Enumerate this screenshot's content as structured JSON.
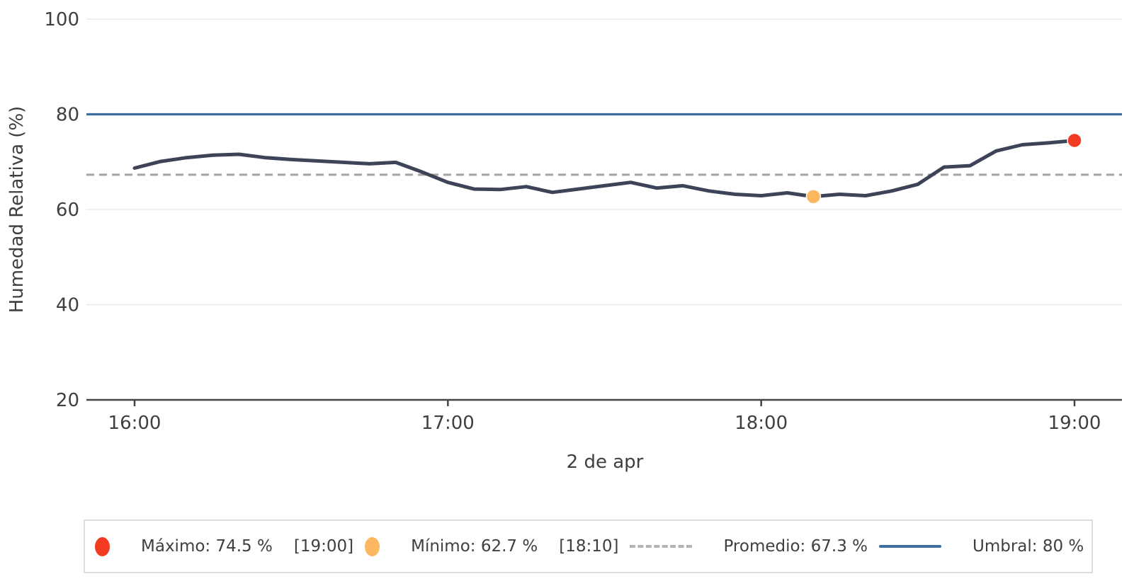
{
  "chart_data": {
    "type": "line",
    "title": "",
    "xlabel": "2 de apr",
    "ylabel": "Humedad Relativa (%)",
    "x": [
      "16:00",
      "16:05",
      "16:10",
      "16:15",
      "16:20",
      "16:25",
      "16:30",
      "16:35",
      "16:40",
      "16:45",
      "16:50",
      "16:55",
      "17:00",
      "17:05",
      "17:10",
      "17:15",
      "17:20",
      "17:25",
      "17:30",
      "17:35",
      "17:40",
      "17:45",
      "17:50",
      "17:55",
      "18:00",
      "18:05",
      "18:10",
      "18:15",
      "18:20",
      "18:25",
      "18:30",
      "18:35",
      "18:40",
      "18:45",
      "18:50",
      "18:55",
      "19:00"
    ],
    "values": [
      68.7,
      70.1,
      70.9,
      71.4,
      71.6,
      70.9,
      70.5,
      70.2,
      69.9,
      69.6,
      69.9,
      67.9,
      65.7,
      64.3,
      64.2,
      64.8,
      63.6,
      64.3,
      65.0,
      65.7,
      64.5,
      65.0,
      63.9,
      63.2,
      62.9,
      63.5,
      62.7,
      63.2,
      62.9,
      63.9,
      65.3,
      68.9,
      69.2,
      72.3,
      73.6,
      74.0,
      74.5
    ],
    "series_name": "Humedad Relativa",
    "series_color": "#3d4458",
    "ylim": [
      20,
      100
    ],
    "yticks": [
      20,
      40,
      60,
      80,
      100
    ],
    "xticks": [
      "16:00",
      "17:00",
      "18:00",
      "19:00"
    ],
    "grid": "horizontal",
    "legend_position": "bottom",
    "max": {
      "label": "Máximo",
      "value": 74.5,
      "unit": "%",
      "time": "19:00",
      "color": "#f23b22"
    },
    "min": {
      "label": "Mínimo",
      "value": 62.7,
      "unit": "%",
      "time": "18:10",
      "color": "#fbb860"
    },
    "promedio": {
      "label": "Promedio",
      "value": 67.3,
      "unit": "%",
      "color": "#a3a3a3",
      "style": "dashed"
    },
    "umbral": {
      "label": "Umbral",
      "value": 80,
      "unit": "%",
      "color": "#3c6e9e",
      "style": "solid"
    }
  },
  "legend": {
    "items": [
      {
        "marker": "dot",
        "color": "#f23b22",
        "label": "Máximo: 74.5 %",
        "time": "[19:00]"
      },
      {
        "marker": "dot",
        "color": "#fbb860",
        "label": "Mínimo: 62.7 %",
        "time": "[18:10]"
      },
      {
        "marker": "dashed-line",
        "color": "#b3b3b3",
        "label": "Promedio: 67.3 %",
        "time": ""
      },
      {
        "marker": "solid-line",
        "color": "#3c6e9e",
        "label": "Umbral: 80 %",
        "time": ""
      }
    ]
  },
  "colors": {
    "background": "#ffffff",
    "series_line": "#3d4458",
    "threshold_line": "#3c6e9e",
    "average_dashed": "#a3a3a3",
    "max_dot": "#f23b22",
    "min_dot": "#fbb860",
    "gridline": "#ececec",
    "axis_line": "#444444",
    "text": "#3f3f3f",
    "legend_border": "#dcdcdc"
  }
}
